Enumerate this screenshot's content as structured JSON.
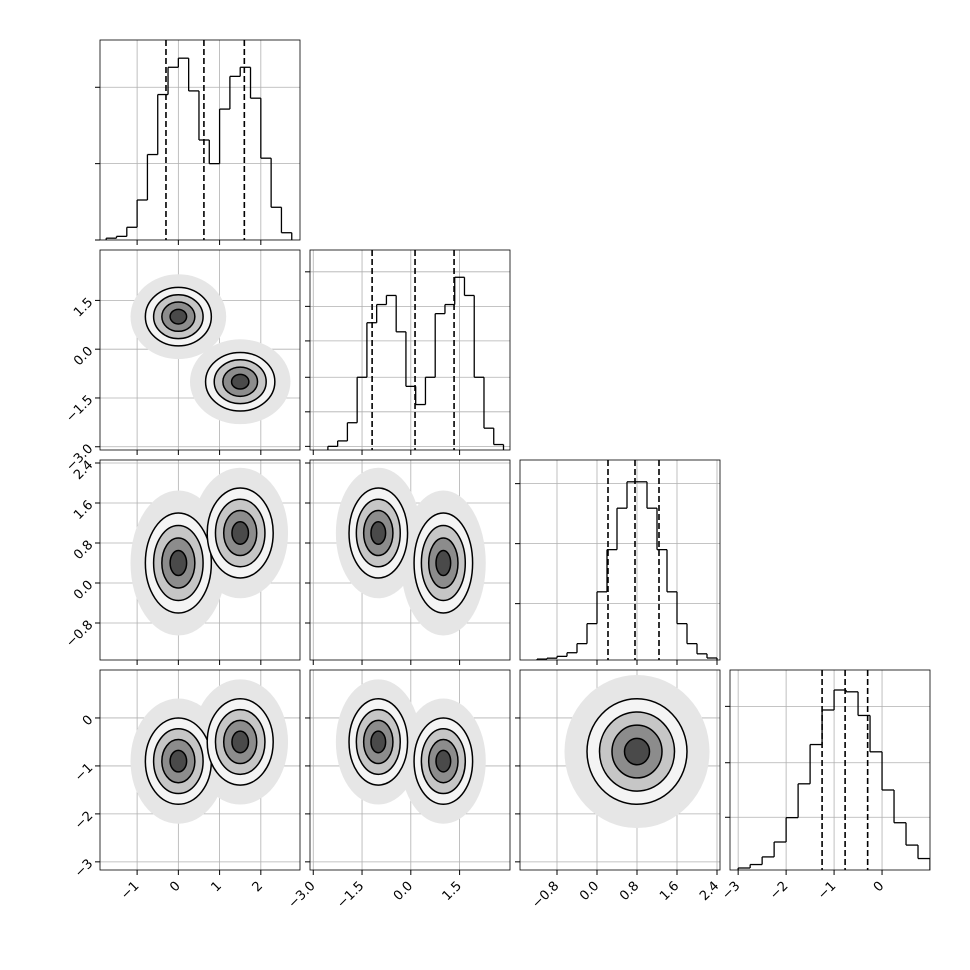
{
  "chart_data": {
    "type": "corner",
    "color": "#000000",
    "grid": true,
    "params": [
      {
        "lim": [
          -1.9,
          2.95
        ],
        "ticks": [
          {
            "value": -1,
            "label": "−1"
          },
          0,
          1,
          2
        ]
      },
      {
        "lim": [
          -3.1,
          3.05
        ],
        "ticks": [
          {
            "value": -3.0,
            "label": "−3.0"
          },
          {
            "value": -1.5,
            "label": "−1.5"
          },
          {
            "value": 0.0,
            "label": "0.0"
          },
          1.5
        ]
      },
      {
        "lim": [
          -1.54,
          2.46
        ],
        "ticks": [
          {
            "value": -0.8,
            "label": "−0.8"
          },
          {
            "value": 0.0,
            "label": "0.0"
          },
          0.8,
          1.6,
          2.4
        ]
      },
      {
        "lim": [
          -3.17,
          1.0
        ],
        "ticks": [
          {
            "value": -3,
            "label": "−3"
          },
          {
            "value": -2,
            "label": "−2"
          },
          {
            "value": -1,
            "label": "−1"
          },
          0
        ]
      }
    ],
    "histograms": [
      {
        "bins": [
          -1.75,
          -1.5,
          -1.25,
          -1,
          -0.75,
          -0.5,
          -0.25,
          0,
          0.25,
          0.5,
          0.75,
          1,
          1.25,
          1.5,
          1.75,
          2,
          2.25,
          2.5,
          2.75
        ],
        "counts": [
          0.01,
          0.02,
          0.07,
          0.22,
          0.47,
          0.8,
          0.95,
          1.0,
          0.82,
          0.55,
          0.42,
          0.72,
          0.9,
          0.95,
          0.78,
          0.45,
          0.18,
          0.04
        ],
        "quantiles": [
          -0.3,
          0.62,
          1.6
        ],
        "ylim": [
          0,
          1.1
        ],
        "yticks": [
          0,
          0.42,
          0.84
        ]
      },
      {
        "bins": [
          -2.55,
          -2.25,
          -1.95,
          -1.65,
          -1.35,
          -1.05,
          -0.75,
          -0.45,
          -0.15,
          0.15,
          0.45,
          0.75,
          1.05,
          1.35,
          1.65,
          1.95,
          2.25,
          2.55,
          2.85
        ],
        "counts": [
          0.02,
          0.05,
          0.15,
          0.4,
          0.7,
          0.8,
          0.85,
          0.65,
          0.35,
          0.25,
          0.4,
          0.75,
          0.8,
          0.95,
          0.85,
          0.4,
          0.12,
          0.03
        ],
        "quantiles": [
          -1.19,
          0.13,
          1.33
        ],
        "ylim": [
          0,
          1.1
        ],
        "yticks": [
          0.02,
          0.21,
          0.4,
          0.6,
          0.79,
          0.98
        ]
      },
      {
        "bins": [
          -1.2,
          -1.0,
          -0.8,
          -0.6,
          -0.4,
          -0.2,
          0.0,
          0.2,
          0.4,
          0.6,
          0.8,
          1.0,
          1.2,
          1.4,
          1.6,
          1.8,
          2.0,
          2.2,
          2.4
        ],
        "counts": [
          0.005,
          0.01,
          0.02,
          0.04,
          0.09,
          0.2,
          0.375,
          0.607,
          0.835,
          0.98,
          0.98,
          0.835,
          0.607,
          0.375,
          0.2,
          0.09,
          0.034,
          0.011
        ],
        "quantiles": [
          0.22,
          0.76,
          1.24
        ],
        "ylim": [
          0,
          1.1
        ],
        "yticks": [
          0.31,
          0.64,
          0.97
        ]
      },
      {
        "bins": [
          -3.0,
          -2.75,
          -2.5,
          -2.25,
          -2.0,
          -1.75,
          -1.5,
          -1.25,
          -1.0,
          -0.75,
          -0.5,
          -0.25,
          0.0,
          0.25,
          0.5,
          0.75,
          1.0
        ],
        "counts": [
          0.011,
          0.03,
          0.072,
          0.154,
          0.288,
          0.474,
          0.69,
          0.88,
          0.99,
          0.98,
          0.85,
          0.65,
          0.44,
          0.26,
          0.137,
          0.063
        ],
        "quantiles": [
          -1.25,
          -0.77,
          -0.3
        ],
        "ylim": [
          0,
          1.1
        ],
        "yticks": [
          0.29,
          0.59,
          0.9
        ]
      }
    ],
    "panels": [
      {
        "row": 1,
        "col": 0,
        "blobs": [
          {
            "x": 0,
            "y": 1,
            "sx": 0.4,
            "sy": 0.45
          },
          {
            "x": 1.5,
            "y": -1,
            "sx": 0.42,
            "sy": 0.45
          }
        ]
      },
      {
        "row": 2,
        "col": 0,
        "blobs": [
          {
            "x": 0,
            "y": 0.4,
            "sx": 0.4,
            "sy": 0.5
          },
          {
            "x": 1.5,
            "y": 1.0,
            "sx": 0.4,
            "sy": 0.45
          }
        ]
      },
      {
        "row": 2,
        "col": 1,
        "blobs": [
          {
            "x": -1,
            "y": 1.0,
            "sx": 0.45,
            "sy": 0.45
          },
          {
            "x": 1,
            "y": 0.4,
            "sx": 0.45,
            "sy": 0.5
          }
        ]
      },
      {
        "row": 3,
        "col": 0,
        "blobs": [
          {
            "x": 0,
            "y": -0.9,
            "sx": 0.4,
            "sy": 0.45
          },
          {
            "x": 1.5,
            "y": -0.5,
            "sx": 0.4,
            "sy": 0.45
          }
        ]
      },
      {
        "row": 3,
        "col": 1,
        "blobs": [
          {
            "x": -1,
            "y": -0.5,
            "sx": 0.45,
            "sy": 0.45
          },
          {
            "x": 1,
            "y": -0.9,
            "sx": 0.45,
            "sy": 0.45
          }
        ]
      },
      {
        "row": 3,
        "col": 2,
        "blobs": [
          {
            "x": 0.8,
            "y": -0.7,
            "sx": 0.5,
            "sy": 0.55
          }
        ]
      }
    ]
  }
}
